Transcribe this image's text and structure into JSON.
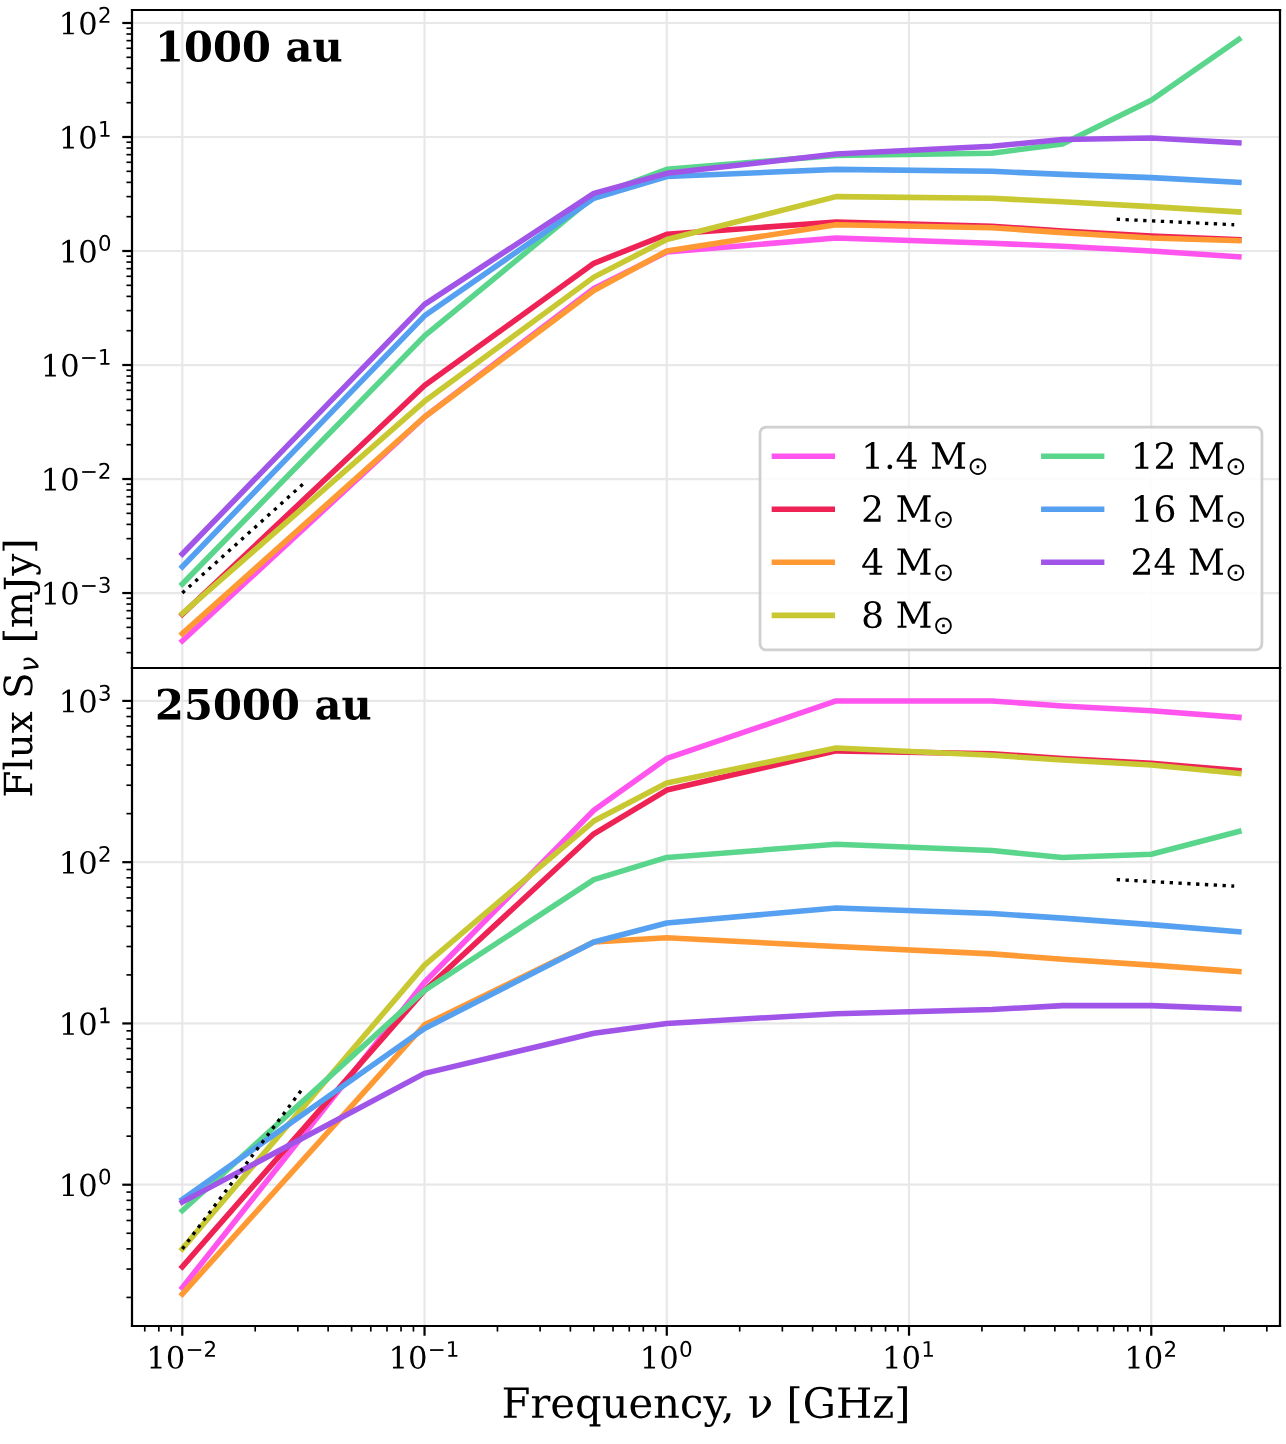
{
  "chart_data": [
    {
      "type": "line",
      "title": "1000 au",
      "log": "xy",
      "grid": true,
      "legend": "bottom right",
      "tick_labels": "y",
      "line_style": "solid",
      "marker": "none",
      "x": [
        0.01,
        0.1,
        0.5,
        1,
        5,
        22,
        43,
        100,
        230
      ],
      "xlim": [
        0.0062,
        340
      ],
      "ylim": [
        0.00022,
        130
      ],
      "xticks": [
        {
          "value": 0.01,
          "label": null
        },
        {
          "value": 0.1,
          "label": null
        },
        {
          "value": 1,
          "label": null
        },
        {
          "value": 10,
          "label": null
        },
        {
          "value": 100,
          "label": null
        }
      ],
      "yticks": [
        {
          "value": 0.001,
          "label": "10$^{−3}$"
        },
        {
          "value": 0.01,
          "label": "10$^{−2}$"
        },
        {
          "value": 0.1,
          "label": "10$^{−1}$"
        },
        {
          "value": 1,
          "label": "10$^{0}$"
        },
        {
          "value": 10,
          "label": "10$^{1}$"
        },
        {
          "value": 100,
          "label": "10$^{2}$"
        }
      ],
      "series": [
        {
          "name": "1.4 M$_{⊙}$",
          "color": "#ff55ee",
          "values": [
            0.00038,
            0.035,
            0.47,
            0.98,
            1.3,
            1.17,
            1.1,
            1.0,
            0.89
          ]
        },
        {
          "name": "2 M$_{⊙}$",
          "color": "#ee2255",
          "values": [
            0.00065,
            0.066,
            0.78,
            1.4,
            1.8,
            1.65,
            1.5,
            1.35,
            1.26
          ]
        },
        {
          "name": "4 M$_{⊙}$",
          "color": "#ff9933",
          "values": [
            0.00044,
            0.035,
            0.45,
            1.0,
            1.7,
            1.6,
            1.45,
            1.3,
            1.23
          ]
        },
        {
          "name": "8 M$_{⊙}$",
          "color": "#c8c832",
          "values": [
            0.00066,
            0.048,
            0.59,
            1.26,
            3.0,
            2.9,
            2.7,
            2.45,
            2.2
          ]
        },
        {
          "name": "12 M$_{⊙}$",
          "color": "#5ad68c",
          "values": [
            0.0012,
            0.18,
            3.0,
            5.2,
            6.9,
            7.2,
            8.7,
            21,
            72
          ]
        },
        {
          "name": "16 M$_{⊙}$",
          "color": "#55a0f0",
          "values": [
            0.0017,
            0.27,
            2.9,
            4.5,
            5.2,
            5.0,
            4.7,
            4.4,
            4.0
          ]
        },
        {
          "name": "24 M$_{⊙}$",
          "color": "#a055e8",
          "values": [
            0.0022,
            0.34,
            3.2,
            4.8,
            7.1,
            8.3,
            9.5,
            9.8,
            8.9
          ]
        },
        {
          "color": "#000000",
          "line_style": "dotted",
          "x": [
            0.01,
            0.0316
          ],
          "values": [
            0.001,
            0.0091
          ]
        },
        {
          "color": "#000000",
          "line_style": "dotted",
          "x": [
            72,
            220
          ],
          "values": [
            1.9,
            1.7
          ]
        }
      ]
    },
    {
      "type": "line",
      "title": "25000 au",
      "log": "xy",
      "grid": true,
      "xlabel": "Frequency, ν [GHz]",
      "ylabel": "Flux S$_{ν}$ [mJy]",
      "line_style": "solid",
      "marker": "none",
      "x": [
        0.01,
        0.1,
        0.5,
        1,
        5,
        22,
        43,
        100,
        230
      ],
      "xlim": [
        0.0062,
        340
      ],
      "ylim": [
        0.133,
        1600
      ],
      "xticks": [
        {
          "value": 0.01,
          "label": "10$^{−2}$"
        },
        {
          "value": 0.1,
          "label": "10$^{−1}$"
        },
        {
          "value": 1,
          "label": "10$^{0}$"
        },
        {
          "value": 10,
          "label": "10$^{1}$"
        },
        {
          "value": 100,
          "label": "10$^{2}$"
        }
      ],
      "yticks": [
        {
          "value": 1,
          "label": "10$^{0}$"
        },
        {
          "value": 10,
          "label": "10$^{1}$"
        },
        {
          "value": 100,
          "label": "10$^{2}$"
        },
        {
          "value": 1000,
          "label": "10$^{3}$"
        }
      ],
      "series": [
        {
          "color": "#ff55ee",
          "values": [
            0.23,
            18,
            210,
            440,
            1000,
            1000,
            930,
            870,
            790
          ]
        },
        {
          "color": "#ee2255",
          "values": [
            0.31,
            16,
            150,
            280,
            490,
            470,
            440,
            410,
            370
          ]
        },
        {
          "color": "#ff9933",
          "values": [
            0.21,
            9.8,
            32,
            34,
            30,
            27,
            25,
            23,
            21
          ]
        },
        {
          "color": "#c8c832",
          "values": [
            0.4,
            23,
            180,
            310,
            510,
            460,
            430,
            400,
            355
          ]
        },
        {
          "color": "#5ad68c",
          "values": [
            0.69,
            16,
            78,
            107,
            129,
            118,
            107,
            112,
            155
          ]
        },
        {
          "color": "#55a0f0",
          "values": [
            0.81,
            9.3,
            32,
            42,
            52,
            48,
            45,
            41,
            37
          ]
        },
        {
          "color": "#a055e8",
          "values": [
            0.78,
            4.9,
            8.7,
            10,
            11.5,
            12.2,
            12.9,
            12.9,
            12.3
          ]
        },
        {
          "color": "#000000",
          "line_style": "dotted",
          "x": [
            0.01,
            0.0316
          ],
          "values": [
            0.4,
            4.0
          ]
        },
        {
          "color": "#000000",
          "line_style": "dotted",
          "x": [
            72,
            220
          ],
          "values": [
            78,
            71
          ]
        }
      ]
    }
  ]
}
